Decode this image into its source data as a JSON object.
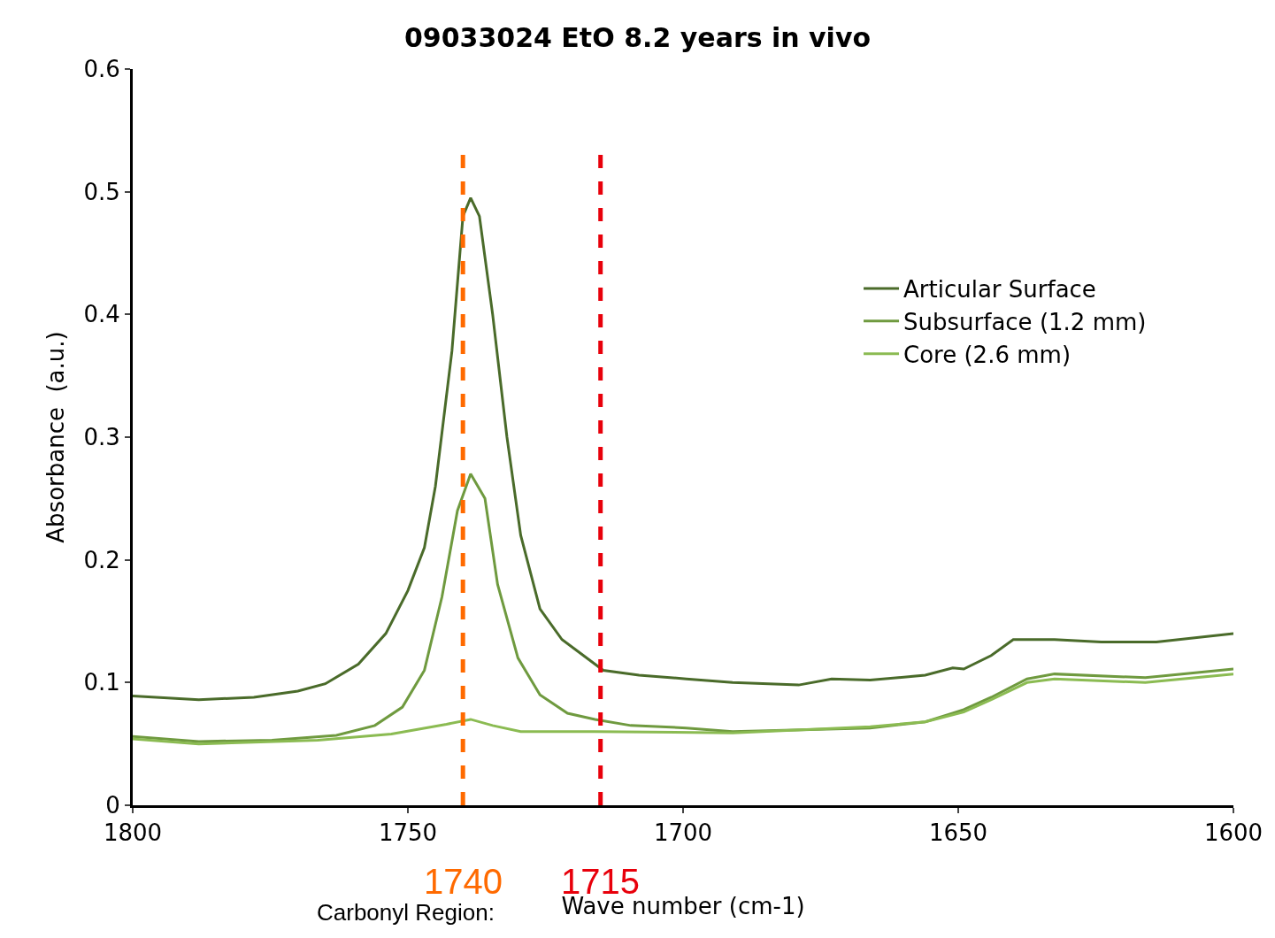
{
  "chart_data": {
    "type": "line",
    "title": "09033024 EtO 8.2 years in vivo",
    "xlabel": "Wave number (cm-1)",
    "ylabel": "Absorbance  (a.u.)",
    "xlim": [
      1800,
      1600
    ],
    "xticks": [
      1800,
      1750,
      1700,
      1650,
      1600
    ],
    "ylim": [
      0,
      0.6
    ],
    "yticks": [
      0,
      0.1,
      0.2,
      0.3,
      0.4,
      0.5,
      0.6
    ],
    "grid": false,
    "legend": "top right",
    "marker": "none",
    "line_style": "solid",
    "series": [
      {
        "name": "Articular Surface",
        "color": "#4a6b2a",
        "x": [
          1800,
          1788,
          1778,
          1770,
          1765,
          1759,
          1754,
          1750,
          1747,
          1745,
          1742,
          1740,
          1738.6,
          1737,
          1734.6,
          1732,
          1729.5,
          1726,
          1722,
          1718.7,
          1714.5,
          1708,
          1699.4,
          1691,
          1679,
          1673,
          1666,
          1656,
          1651,
          1649,
          1644,
          1640,
          1632.5,
          1624,
          1614,
          1600
        ],
        "values": [
          0.089,
          0.086,
          0.088,
          0.093,
          0.099,
          0.115,
          0.14,
          0.175,
          0.21,
          0.26,
          0.37,
          0.48,
          0.495,
          0.48,
          0.4,
          0.3,
          0.22,
          0.16,
          0.135,
          0.124,
          0.11,
          0.106,
          0.103,
          0.1,
          0.098,
          0.103,
          0.102,
          0.106,
          0.112,
          0.111,
          0.122,
          0.135,
          0.135,
          0.133,
          0.133,
          0.14
        ]
      },
      {
        "name": "Subsurface (1.2 mm)",
        "color": "#6f9a3f",
        "x": [
          1800,
          1788,
          1774.7,
          1763,
          1756,
          1751,
          1747,
          1743.8,
          1741,
          1738.6,
          1736,
          1733.7,
          1730,
          1726,
          1721,
          1716,
          1709.5,
          1699.4,
          1691,
          1666,
          1656,
          1651,
          1649,
          1644,
          1637.5,
          1632.5,
          1616,
          1600
        ],
        "values": [
          0.056,
          0.052,
          0.053,
          0.057,
          0.065,
          0.08,
          0.11,
          0.17,
          0.24,
          0.27,
          0.25,
          0.18,
          0.12,
          0.09,
          0.075,
          0.07,
          0.065,
          0.063,
          0.06,
          0.063,
          0.068,
          0.075,
          0.078,
          0.088,
          0.103,
          0.107,
          0.104,
          0.111
        ]
      },
      {
        "name": "Core (2.6 mm)",
        "color": "#8bbb52",
        "x": [
          1800,
          1788,
          1766.4,
          1753,
          1743,
          1738.6,
          1734.6,
          1729.5,
          1716,
          1691,
          1666,
          1656,
          1649,
          1644,
          1637.5,
          1632.5,
          1616,
          1600
        ],
        "values": [
          0.054,
          0.05,
          0.053,
          0.058,
          0.066,
          0.07,
          0.065,
          0.06,
          0.06,
          0.059,
          0.064,
          0.068,
          0.076,
          0.086,
          0.1,
          0.103,
          0.1,
          0.107
        ]
      }
    ],
    "ref_lines": [
      {
        "axis": "x",
        "value": 1740,
        "label": "1740",
        "color": "#ff6a00",
        "line_style": "dashed"
      },
      {
        "axis": "x",
        "value": 1715,
        "label": "1715",
        "color": "#e8000b",
        "line_style": "dashed"
      }
    ],
    "annotations": [
      "Carbonyl Region:"
    ]
  }
}
